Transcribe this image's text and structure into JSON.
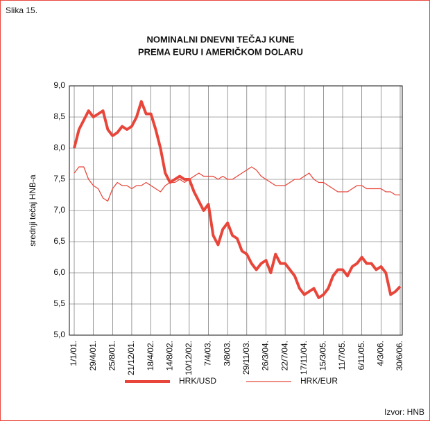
{
  "caption": "Slika 15.",
  "source": "Izvor: HNB",
  "chart_data": {
    "type": "line",
    "title": [
      "NOMINALNI DNEVNI TEČAJ KUNE",
      "PREMA EURU I AMERIČKOM DOLARU"
    ],
    "y_label": "srednji tečaj HNB-a",
    "categories": [
      "1/1/01.",
      null,
      null,
      null,
      "29/4/01.",
      null,
      null,
      null,
      "25/8/01.",
      null,
      null,
      null,
      "21/12/01.",
      null,
      null,
      null,
      "18/4/02.",
      null,
      null,
      null,
      "14/8/02.",
      null,
      null,
      null,
      "10/12/02.",
      null,
      null,
      null,
      "7/4/03.",
      null,
      null,
      null,
      "3/8/03.",
      null,
      null,
      null,
      "29/11/03.",
      null,
      null,
      null,
      "26/3/04.",
      null,
      null,
      null,
      "22/7/04.",
      null,
      null,
      null,
      "17/11/04.",
      null,
      null,
      null,
      "15/3/05.",
      null,
      null,
      null,
      "11/7/05.",
      null,
      null,
      null,
      "6/11/05.",
      null,
      null,
      null,
      "4/3/06.",
      null,
      null,
      null,
      "30/6/06."
    ],
    "series": [
      {
        "name": "HRK/USD",
        "color": "#e8463a",
        "values": [
          8.0,
          8.3,
          8.45,
          8.6,
          8.5,
          8.55,
          8.6,
          8.3,
          8.2,
          8.25,
          8.35,
          8.3,
          8.35,
          8.5,
          8.75,
          8.55,
          8.55,
          8.3,
          8.0,
          7.6,
          7.45,
          7.5,
          7.55,
          7.5,
          7.5,
          7.3,
          7.15,
          7.0,
          7.1,
          6.6,
          6.45,
          6.7,
          6.8,
          6.6,
          6.55,
          6.35,
          6.3,
          6.15,
          6.05,
          6.15,
          6.2,
          6.0,
          6.3,
          6.15,
          6.15,
          6.05,
          5.95,
          5.75,
          5.65,
          5.7,
          5.75,
          5.6,
          5.65,
          5.75,
          5.95,
          6.05,
          6.05,
          5.95,
          6.1,
          6.15,
          6.25,
          6.15,
          6.15,
          6.05,
          6.1,
          6.0,
          5.65,
          5.7,
          5.78
        ]
      },
      {
        "name": "HRK/EUR",
        "color": "#e8463a",
        "values": [
          7.6,
          7.7,
          7.7,
          7.5,
          7.4,
          7.35,
          7.2,
          7.15,
          7.35,
          7.45,
          7.4,
          7.4,
          7.35,
          7.4,
          7.4,
          7.45,
          7.4,
          7.35,
          7.3,
          7.4,
          7.45,
          7.45,
          7.5,
          7.45,
          7.5,
          7.55,
          7.6,
          7.55,
          7.55,
          7.55,
          7.5,
          7.55,
          7.5,
          7.5,
          7.55,
          7.6,
          7.65,
          7.7,
          7.65,
          7.55,
          7.5,
          7.45,
          7.4,
          7.4,
          7.4,
          7.45,
          7.5,
          7.5,
          7.55,
          7.6,
          7.5,
          7.45,
          7.45,
          7.4,
          7.35,
          7.3,
          7.3,
          7.3,
          7.35,
          7.4,
          7.4,
          7.35,
          7.35,
          7.35,
          7.35,
          7.3,
          7.3,
          7.25,
          7.25
        ]
      }
    ],
    "ylim": [
      5,
      9
    ],
    "yticks": [
      {
        "value": 5,
        "label": "5,0"
      },
      {
        "value": 5.5,
        "label": "5,5"
      },
      {
        "value": 6,
        "label": "6,0"
      },
      {
        "value": 6.5,
        "label": "6,5"
      },
      {
        "value": 7,
        "label": "7,0"
      },
      {
        "value": 7.5,
        "label": "7,5"
      },
      {
        "value": 8,
        "label": "8,0"
      },
      {
        "value": 8.5,
        "label": "8,5"
      },
      {
        "value": 9,
        "label": "9,0"
      }
    ],
    "grid": true,
    "legend": "bottom"
  }
}
